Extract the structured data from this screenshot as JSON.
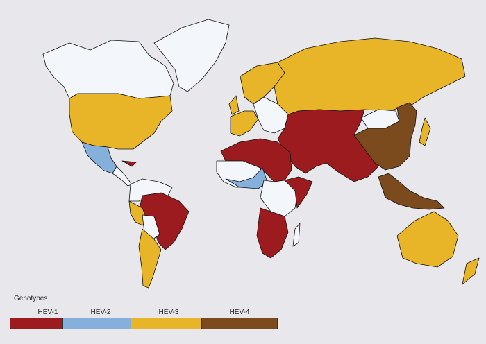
{
  "colors": {
    "background": "#e8e8ec",
    "no_data": "#f3f6fa",
    "hev1": "#9b1b1f",
    "hev2": "#86b0dc",
    "hev3": "#e8b528",
    "hev4": "#7b4a1d"
  },
  "legend": {
    "title": "Genotypes",
    "items": [
      {
        "label": "HEV-1",
        "color": "#9b1b1f"
      },
      {
        "label": "HEV-2",
        "color": "#86b0dc"
      },
      {
        "label": "HEV-3",
        "color": "#e8b528"
      },
      {
        "label": "HEV-4",
        "color": "#7b4a1d"
      }
    ]
  }
}
